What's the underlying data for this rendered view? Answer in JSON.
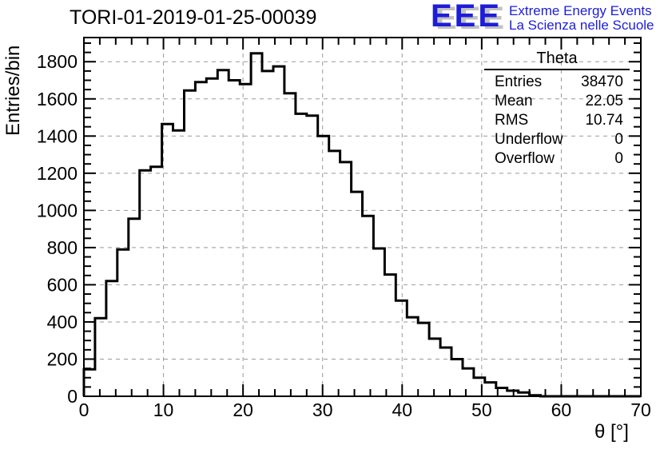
{
  "title": "TORI-01-2019-01-25-00039",
  "logo": {
    "letters": "EEE",
    "line1": "Extreme Energy Events",
    "line2": "La Scienza nelle Scuole",
    "blue": "#1d1dd8",
    "shadow_gray": "#c2c2c2"
  },
  "stats": {
    "title": "Theta",
    "rows": [
      {
        "label": "Entries",
        "value": "38470"
      },
      {
        "label": "Mean",
        "value": "22.05"
      },
      {
        "label": "RMS",
        "value": "10.74"
      },
      {
        "label": "Underflow",
        "value": "0"
      },
      {
        "label": "Overflow",
        "value": "0"
      }
    ]
  },
  "chart_data": {
    "type": "bar",
    "style": "histogram-step-outline",
    "title": "TORI-01-2019-01-25-00039",
    "xlabel": "θ [°]",
    "ylabel": "Entries/bin",
    "xlim": [
      0,
      70
    ],
    "ylim": [
      0,
      1930
    ],
    "bin_start": 0,
    "bin_width": 1.4,
    "values": [
      145,
      420,
      620,
      790,
      955,
      1215,
      1235,
      1465,
      1430,
      1645,
      1690,
      1710,
      1755,
      1700,
      1680,
      1845,
      1750,
      1775,
      1630,
      1520,
      1510,
      1400,
      1320,
      1260,
      1100,
      970,
      795,
      655,
      515,
      425,
      395,
      310,
      262,
      200,
      150,
      100,
      75,
      45,
      30,
      20,
      5,
      0,
      0,
      0,
      0,
      0,
      0,
      0,
      0,
      0
    ],
    "x_major_ticks": [
      0,
      10,
      20,
      30,
      40,
      50,
      60,
      70
    ],
    "x_minor_step": 2,
    "y_major_ticks": [
      0,
      200,
      400,
      600,
      800,
      1000,
      1200,
      1400,
      1600,
      1800
    ],
    "y_minor_step": 50,
    "grid": true,
    "grid_style": "dashed",
    "grid_color": "#999999",
    "line_color": "#000000",
    "frame_color": "#000000",
    "legend_position": "none"
  }
}
